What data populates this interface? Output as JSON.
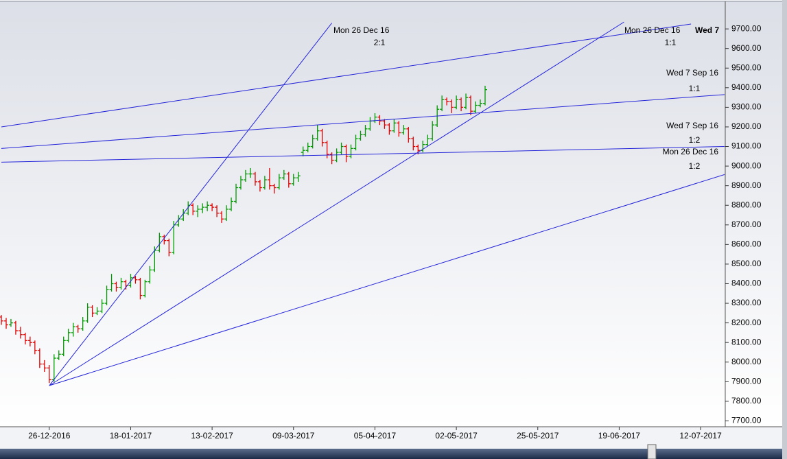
{
  "chart_data": {
    "type": "ohlc",
    "categories": [
      null,
      null,
      null,
      null,
      null,
      null,
      null,
      null,
      null,
      null,
      "26-12-2016",
      null,
      null,
      null,
      null,
      null,
      null,
      null,
      null,
      null,
      null,
      null,
      null,
      null,
      null,
      null,
      null,
      "18-01-2017",
      null,
      null,
      null,
      null,
      null,
      null,
      null,
      null,
      null,
      null,
      null,
      null,
      null,
      null,
      null,
      null,
      "13-02-2017",
      null,
      null,
      null,
      null,
      null,
      null,
      null,
      null,
      null,
      null,
      null,
      null,
      null,
      null,
      null,
      null,
      "09-03-2017",
      null,
      null,
      null,
      null,
      null,
      null,
      null,
      null,
      null,
      null,
      null,
      null,
      null,
      null,
      null,
      null,
      "05-04-2017",
      null,
      null,
      null,
      null,
      null,
      null,
      null,
      null,
      null,
      null,
      null,
      null,
      null,
      null,
      null,
      null,
      "02-05-2017",
      null,
      null,
      null,
      null,
      null,
      null,
      null,
      null,
      null,
      null,
      null,
      null,
      null,
      null,
      null,
      null,
      "25-05-2017",
      null,
      null,
      null,
      null,
      null,
      null,
      null,
      null,
      null,
      null,
      null,
      null,
      null,
      null,
      null,
      null,
      "19-06-2017",
      null,
      null,
      null,
      null,
      null,
      null,
      null,
      null,
      null,
      null,
      null,
      null,
      null,
      null,
      null,
      null,
      "12-07-2017",
      null,
      null,
      null,
      null,
      null
    ],
    "ohlc": [
      [
        8230,
        8240,
        8190,
        8210
      ],
      [
        8210,
        8225,
        8170,
        8190
      ],
      [
        8190,
        8220,
        8180,
        8200
      ],
      [
        8200,
        8210,
        8140,
        8160
      ],
      [
        8160,
        8180,
        8120,
        8140
      ],
      [
        8140,
        8150,
        8090,
        8110
      ],
      [
        8110,
        8130,
        8080,
        8100
      ],
      [
        8100,
        8110,
        8040,
        8060
      ],
      [
        8060,
        8070,
        7970,
        7990
      ],
      [
        7990,
        8010,
        7950,
        7970
      ],
      [
        7970,
        7985,
        7893,
        7910
      ],
      [
        7910,
        8040,
        7900,
        8020
      ],
      [
        8020,
        8060,
        8010,
        8040
      ],
      [
        8040,
        8130,
        8030,
        8110
      ],
      [
        8110,
        8170,
        8100,
        8150
      ],
      [
        8150,
        8200,
        8130,
        8180
      ],
      [
        8180,
        8190,
        8150,
        8170
      ],
      [
        8170,
        8230,
        8160,
        8210
      ],
      [
        8210,
        8300,
        8200,
        8280
      ],
      [
        8280,
        8290,
        8230,
        8250
      ],
      [
        8250,
        8280,
        8240,
        8260
      ],
      [
        8260,
        8320,
        8250,
        8300
      ],
      [
        8300,
        8390,
        8290,
        8370
      ],
      [
        8370,
        8450,
        8360,
        8400
      ],
      [
        8400,
        8410,
        8360,
        8380
      ],
      [
        8380,
        8430,
        8370,
        8410
      ],
      [
        8410,
        8420,
        8370,
        8390
      ],
      [
        8390,
        8450,
        8380,
        8430
      ],
      [
        8430,
        8440,
        8400,
        8420
      ],
      [
        8420,
        8430,
        8320,
        8340
      ],
      [
        8340,
        8420,
        8330,
        8410
      ],
      [
        8410,
        8490,
        8400,
        8470
      ],
      [
        8470,
        8590,
        8460,
        8570
      ],
      [
        8570,
        8660,
        8560,
        8640
      ],
      [
        8640,
        8650,
        8600,
        8620
      ],
      [
        8620,
        8630,
        8540,
        8560
      ],
      [
        8560,
        8720,
        8550,
        8700
      ],
      [
        8700,
        8750,
        8690,
        8730
      ],
      [
        8730,
        8780,
        8720,
        8760
      ],
      [
        8760,
        8820,
        8750,
        8800
      ],
      [
        8800,
        8810,
        8750,
        8770
      ],
      [
        8770,
        8800,
        8740,
        8780
      ],
      [
        8780,
        8810,
        8760,
        8790
      ],
      [
        8790,
        8820,
        8770,
        8800
      ],
      [
        8800,
        8810,
        8770,
        8790
      ],
      [
        8790,
        8800,
        8740,
        8760
      ],
      [
        8760,
        8770,
        8710,
        8730
      ],
      [
        8730,
        8800,
        8720,
        8780
      ],
      [
        8780,
        8840,
        8770,
        8820
      ],
      [
        8820,
        8910,
        8810,
        8890
      ],
      [
        8890,
        8950,
        8880,
        8930
      ],
      [
        8930,
        8980,
        8920,
        8960
      ],
      [
        8960,
        8990,
        8940,
        8960
      ],
      [
        8960,
        8970,
        8900,
        8920
      ],
      [
        8920,
        8930,
        8870,
        8890
      ],
      [
        8890,
        8950,
        8880,
        8930
      ],
      [
        8930,
        8990,
        8880,
        8900
      ],
      [
        8900,
        8910,
        8860,
        8890
      ],
      [
        8890,
        8960,
        8880,
        8940
      ],
      [
        8940,
        8980,
        8930,
        8960
      ],
      [
        8960,
        8970,
        8890,
        8910
      ],
      [
        8910,
        8960,
        8900,
        8940
      ],
      [
        8940,
        8970,
        8920,
        8950
      ],
      [
        9070,
        9100,
        9050,
        9080
      ],
      [
        9080,
        9120,
        9070,
        9100
      ],
      [
        9100,
        9160,
        9090,
        9140
      ],
      [
        9140,
        9210,
        9130,
        9180
      ],
      [
        9180,
        9190,
        9100,
        9120
      ],
      [
        9120,
        9130,
        9040,
        9060
      ],
      [
        9060,
        9070,
        9010,
        9030
      ],
      [
        9030,
        9090,
        9020,
        9070
      ],
      [
        9070,
        9120,
        9060,
        9100
      ],
      [
        9100,
        9110,
        9020,
        9050
      ],
      [
        9050,
        9110,
        9040,
        9090
      ],
      [
        9090,
        9160,
        9080,
        9140
      ],
      [
        9140,
        9180,
        9130,
        9160
      ],
      [
        9160,
        9210,
        9150,
        9190
      ],
      [
        9190,
        9250,
        9180,
        9230
      ],
      [
        9230,
        9270,
        9220,
        9250
      ],
      [
        9250,
        9260,
        9210,
        9230
      ],
      [
        9230,
        9240,
        9190,
        9210
      ],
      [
        9210,
        9220,
        9160,
        9180
      ],
      [
        9180,
        9240,
        9170,
        9220
      ],
      [
        9220,
        9230,
        9150,
        9170
      ],
      [
        9170,
        9210,
        9160,
        9190
      ],
      [
        9190,
        9200,
        9120,
        9140
      ],
      [
        9140,
        9150,
        9080,
        9100
      ],
      [
        9100,
        9110,
        9060,
        9080
      ],
      [
        9080,
        9130,
        9070,
        9110
      ],
      [
        9110,
        9160,
        9100,
        9140
      ],
      [
        9140,
        9230,
        9130,
        9210
      ],
      [
        9210,
        9310,
        9200,
        9290
      ],
      [
        9290,
        9360,
        9280,
        9340
      ],
      [
        9340,
        9350,
        9310,
        9330
      ],
      [
        9330,
        9340,
        9270,
        9300
      ],
      [
        9300,
        9360,
        9290,
        9340
      ],
      [
        9340,
        9350,
        9280,
        9300
      ],
      [
        9300,
        9370,
        9290,
        9350
      ],
      [
        9350,
        9360,
        9260,
        9280
      ],
      [
        9280,
        9330,
        9270,
        9310
      ],
      [
        9310,
        9340,
        9300,
        9320
      ],
      [
        9320,
        9410,
        9310,
        9390
      ]
    ],
    "up_color": "#009900",
    "down_color": "#e00000",
    "line_color": "#2424d8",
    "lines": [
      {
        "date": "Mon 26 Dec 16",
        "ratio": "2:1",
        "start": [
          10,
          7880
        ],
        "end": [
          69,
          9730
        ]
      },
      {
        "date": "Mon 26 Dec 16",
        "ratio": "1:1",
        "start": [
          10,
          7880
        ],
        "end": [
          130,
          9735
        ]
      },
      {
        "date": "Mon 26 Dec 16",
        "ratio": "1:2",
        "start": [
          10,
          7880
        ],
        "end": [
          151,
          8957
        ]
      },
      {
        "date": "Wed 7",
        "start": [
          0,
          9200
        ],
        "end": [
          144,
          9725
        ]
      },
      {
        "date": "Wed 7 Sep 16",
        "ratio": "1:1",
        "start": [
          0,
          9090
        ],
        "end": [
          151,
          9365
        ]
      },
      {
        "date": "Wed 7 Sep 16",
        "ratio": "1:2",
        "start": [
          0,
          9020
        ],
        "end": [
          151,
          9100
        ]
      }
    ],
    "ylim": [
      7670,
      9830
    ],
    "yticks": [
      {
        "value": 9700,
        "label": "9700.00"
      },
      {
        "value": 9600,
        "label": "9600.00"
      },
      {
        "value": 9500,
        "label": "9500.00"
      },
      {
        "value": 9400,
        "label": "9400.00"
      },
      {
        "value": 9300,
        "label": "9300.00"
      },
      {
        "value": 9200,
        "label": "9200.00"
      },
      {
        "value": 9100,
        "label": "9100.00"
      },
      {
        "value": 9000,
        "label": "9000.00"
      },
      {
        "value": 8900,
        "label": "8900.00"
      },
      {
        "value": 8800,
        "label": "8800.00"
      },
      {
        "value": 8700,
        "label": "8700.00"
      },
      {
        "value": 8600,
        "label": "8600.00"
      },
      {
        "value": 8500,
        "label": "8500.00"
      },
      {
        "value": 8400,
        "label": "8400.00"
      },
      {
        "value": 8300,
        "label": "8300.00"
      },
      {
        "value": 8200,
        "label": "8200.00"
      },
      {
        "value": 8100,
        "label": "8100.00"
      },
      {
        "value": 8000,
        "label": "8000.00"
      },
      {
        "value": 7900,
        "label": "7900.00"
      },
      {
        "value": 7800,
        "label": "7800.00"
      },
      {
        "value": 7700,
        "label": "7700.00"
      }
    ]
  }
}
